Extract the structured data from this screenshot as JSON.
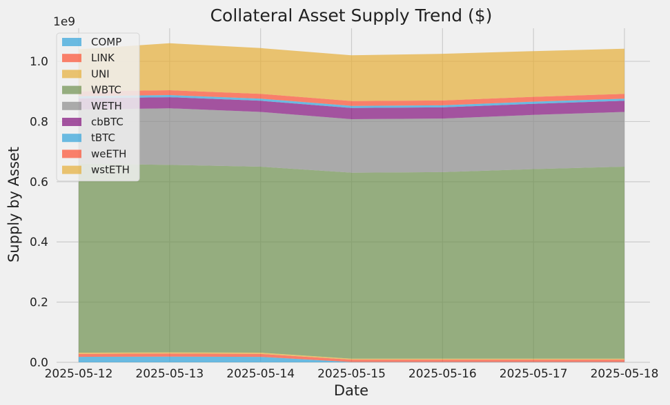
{
  "chart_data": {
    "type": "area",
    "stacked": true,
    "title": "Collateral Asset Supply Trend ($)",
    "xlabel": "Date",
    "ylabel": "Supply by Asset",
    "y_offset_text": "1e9",
    "x": [
      "2025-05-12",
      "2025-05-13",
      "2025-05-14",
      "2025-05-15",
      "2025-05-16",
      "2025-05-17",
      "2025-05-18"
    ],
    "yticks": [
      "0.0",
      "0.2",
      "0.4",
      "0.6",
      "0.8",
      "1.0"
    ],
    "ylim": [
      0,
      1.11
    ],
    "grid": true,
    "legend_placement": "top-left",
    "series": [
      {
        "name": "COMP",
        "color": "#30a2da",
        "values": [
          0.018,
          0.019,
          0.018,
          0.001,
          0.001,
          0.001,
          0.001
        ]
      },
      {
        "name": "LINK",
        "color": "#fc4f30",
        "values": [
          0.01,
          0.01,
          0.01,
          0.008,
          0.008,
          0.008,
          0.008
        ]
      },
      {
        "name": "UNI",
        "color": "#e5ae38",
        "values": [
          0.004,
          0.004,
          0.004,
          0.003,
          0.003,
          0.003,
          0.003
        ]
      },
      {
        "name": "WBTC",
        "color": "#6d904f",
        "values": [
          0.628,
          0.623,
          0.618,
          0.618,
          0.62,
          0.63,
          0.638
        ]
      },
      {
        "name": "WETH",
        "color": "#8b8b8b",
        "values": [
          0.18,
          0.188,
          0.182,
          0.178,
          0.178,
          0.18,
          0.182
        ]
      },
      {
        "name": "cbBTC",
        "color": "#810f7c",
        "values": [
          0.037,
          0.037,
          0.037,
          0.037,
          0.037,
          0.037,
          0.037
        ]
      },
      {
        "name": "tBTC",
        "color": "#30a2da",
        "values": [
          0.007,
          0.007,
          0.007,
          0.007,
          0.007,
          0.007,
          0.007
        ]
      },
      {
        "name": "weETH",
        "color": "#fc4f30",
        "values": [
          0.016,
          0.016,
          0.016,
          0.016,
          0.016,
          0.016,
          0.016
        ]
      },
      {
        "name": "wstETH",
        "color": "#e5ae38",
        "values": [
          0.14,
          0.156,
          0.152,
          0.152,
          0.155,
          0.152,
          0.15
        ]
      }
    ]
  }
}
